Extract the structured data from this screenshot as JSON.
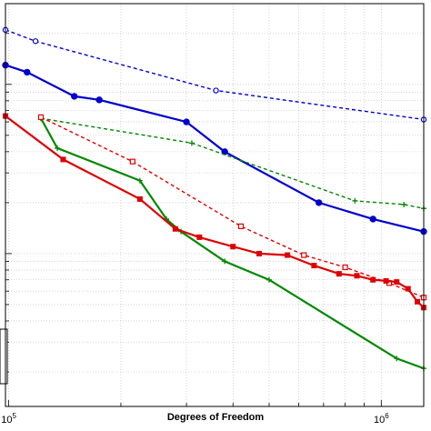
{
  "chart_data": {
    "type": "line",
    "title": "",
    "xlabel": "Degrees of Freedom",
    "ylabel": "",
    "x_scale": "log",
    "y_scale": "log",
    "xlim": [
      98000,
      1300000
    ],
    "ylim": [
      0.0125,
      3.0
    ],
    "grid": true,
    "x_ticks": [
      {
        "value": 100000,
        "base": "10",
        "exp": "5"
      },
      {
        "value": 1000000,
        "base": "10",
        "exp": "6"
      }
    ],
    "series": [
      {
        "color": "#0000cc",
        "style": "dashed",
        "marker": "open-circle",
        "x": [
          98000,
          118000,
          360000,
          1300000
        ],
        "y": [
          2.1,
          1.8,
          0.92,
          0.62
        ]
      },
      {
        "color": "#0000cc",
        "style": "solid",
        "marker": "filled-circle",
        "x": [
          98000,
          112000,
          150000,
          175000,
          300000,
          380000,
          680000,
          950000,
          1300000
        ],
        "y": [
          1.3,
          1.18,
          0.85,
          0.81,
          0.6,
          0.4,
          0.2,
          0.16,
          0.135
        ]
      },
      {
        "color": "#008800",
        "style": "dashed",
        "marker": "plus",
        "x": [
          122000,
          310000,
          850000,
          1150000,
          1300000
        ],
        "y": [
          0.63,
          0.45,
          0.205,
          0.195,
          0.185
        ]
      },
      {
        "color": "#008800",
        "style": "solid",
        "marker": "plus",
        "x": [
          122000,
          135000,
          225000,
          265000,
          290000,
          380000,
          500000,
          1100000,
          1300000
        ],
        "y": [
          0.63,
          0.42,
          0.27,
          0.16,
          0.135,
          0.09,
          0.07,
          0.024,
          0.021
        ]
      },
      {
        "color": "#dd0000",
        "style": "dashed",
        "marker": "open-square",
        "x": [
          122000,
          215000,
          420000,
          620000,
          800000,
          1050000,
          1300000
        ],
        "y": [
          0.64,
          0.35,
          0.145,
          0.098,
          0.083,
          0.067,
          0.055
        ]
      },
      {
        "color": "#dd0000",
        "style": "solid",
        "marker": "filled-square",
        "x": [
          98000,
          140000,
          225000,
          280000,
          325000,
          400000,
          470000,
          560000,
          660000,
          770000,
          860000,
          950000,
          1030000,
          1100000,
          1180000,
          1250000,
          1300000
        ],
        "y": [
          0.65,
          0.36,
          0.21,
          0.14,
          0.125,
          0.11,
          0.1,
          0.098,
          0.085,
          0.076,
          0.074,
          0.07,
          0.069,
          0.068,
          0.062,
          0.052,
          0.048
        ]
      }
    ]
  }
}
